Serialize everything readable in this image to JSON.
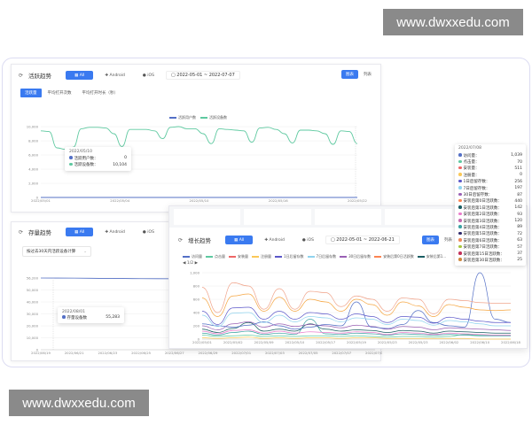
{
  "watermark": {
    "top": "www.dwxxedu.com",
    "bottom": "www.dwxxedu.com"
  },
  "filters": {
    "all": "All",
    "android": "Android",
    "ios": "iOS",
    "chart": "图表",
    "list": "列表"
  },
  "active": {
    "title": "活跃趋势",
    "date_range": "2022-05-01  ~  2022-07-07",
    "tabs": [
      "活跃量",
      "平均打开次数",
      "平均打开时长（秒）"
    ],
    "legend": [
      {
        "name": "活跃用户数",
        "color": "#5470c6"
      },
      {
        "name": "活跃设备数",
        "color": "#5ec9a0"
      }
    ],
    "y_ticks": [
      "10,000",
      "8,000",
      "6,000",
      "4,000",
      "2,000",
      "0"
    ],
    "x_ticks": [
      "2022/05/01",
      "2022/05/04",
      "2022/05/10",
      "2022/05/16",
      "2022/05/22"
    ],
    "ylim": [
      0,
      10000
    ],
    "series_devices": [
      9400,
      9300,
      7000,
      6800,
      7100,
      9700,
      9900,
      9900,
      9800,
      9000,
      7200,
      9600,
      9600,
      9600,
      9400,
      8300,
      9900,
      10000,
      9700,
      9700,
      9000,
      7600,
      9700,
      9600,
      9500,
      9400,
      7800,
      9800,
      9900,
      9600,
      9000,
      7700,
      9500,
      9500,
      9400,
      9000,
      7500,
      9400,
      9300,
      7600
    ],
    "series_users": [
      0,
      0,
      0,
      0,
      0,
      0,
      0,
      0,
      0,
      0,
      0,
      0,
      0,
      0,
      0,
      0,
      0,
      0,
      0,
      0,
      0,
      0,
      0,
      0,
      0,
      0,
      0,
      0,
      0,
      0,
      0,
      0,
      0,
      0,
      0,
      0,
      0,
      0,
      0,
      0
    ],
    "tooltip": {
      "date": "2022/05/10",
      "rows": [
        {
          "label": "活跃用户数：",
          "value": "0",
          "color": "#5470c6"
        },
        {
          "label": "活跃设备数：",
          "value": "10,104",
          "color": "#5ec9a0"
        }
      ]
    }
  },
  "growth": {
    "title": "增长趋势",
    "date_range": "2022-05-01  ~  2022-06-21",
    "legend": [
      "访问量",
      "点击量",
      "安装量",
      "注册量",
      "1日后留存数",
      "7日后留存数",
      "30日后留存数",
      "安装后第0日活跃数",
      "安装后第1..."
    ],
    "legend_page": "1/2",
    "y_ticks": [
      "1,000",
      "800",
      "600",
      "400",
      "200",
      "0"
    ],
    "ylim": [
      0,
      1000
    ],
    "x_ticks": [
      "2022/05/01",
      "2022/05/02",
      "2022/05/09",
      "2022/05/10",
      "2022/05/17",
      "2022/05/19",
      "2022/05/23",
      "2022/05/23",
      "2022/06/02",
      "2022/06/10",
      "2022/06/18"
    ],
    "series": [
      {
        "name": "安装量",
        "color": "#f0a58c",
        "values": [
          780,
          400,
          850,
          800,
          450,
          760,
          450,
          720,
          700,
          490,
          650,
          600,
          420,
          620,
          600,
          380,
          600,
          580,
          550,
          540,
          540
        ]
      },
      {
        "name": "安装后第0日活跃数",
        "color": "#f5a540",
        "values": [
          620,
          340,
          650,
          680,
          420,
          630,
          420,
          600,
          560,
          420,
          600,
          520,
          360,
          560,
          500,
          340,
          520,
          480,
          440,
          430,
          440
        ]
      },
      {
        "name": "1日后留存数",
        "color": "#5b57c9",
        "values": [
          420,
          220,
          470,
          480,
          300,
          420,
          300,
          400,
          380,
          300,
          380,
          340,
          250,
          340,
          330,
          240,
          330,
          300,
          270,
          250,
          250
        ]
      },
      {
        "name": "7日后留存数",
        "color": "#8fd3ee",
        "values": [
          360,
          190,
          390,
          400,
          250,
          360,
          260,
          340,
          320,
          260,
          320,
          300,
          220,
          300,
          280,
          210,
          280,
          260,
          230,
          200,
          200
        ]
      },
      {
        "name": "访问量",
        "color": "#5470c6",
        "values": [
          230,
          200,
          180,
          210,
          260,
          200,
          150,
          180,
          220,
          200,
          560,
          180,
          160,
          220,
          430,
          250,
          200,
          180,
          1000,
          300,
          250
        ]
      },
      {
        "name": "30日后留存数",
        "color": "#9a60b4",
        "values": [
          200,
          140,
          230,
          260,
          180,
          230,
          190,
          220,
          200,
          170,
          210,
          190,
          150,
          190,
          180,
          140,
          170,
          160,
          150,
          140,
          130
        ]
      },
      {
        "name": "安装后第1日活跃数",
        "color": "#1a5e63",
        "values": [
          150,
          100,
          160,
          250,
          120,
          150,
          120,
          230,
          150,
          120,
          140,
          130,
          100,
          130,
          120,
          90,
          120,
          110,
          100,
          90,
          90
        ]
      },
      {
        "name": "安装后第2日活跃数",
        "color": "#ea7ccc",
        "values": [
          120,
          80,
          130,
          140,
          90,
          120,
          90,
          110,
          100,
          90,
          110,
          100,
          70,
          100,
          90,
          70,
          90,
          80,
          70,
          60,
          60
        ]
      },
      {
        "name": "安装后第4日活跃数",
        "color": "#3ba2a2",
        "values": [
          90,
          60,
          100,
          120,
          70,
          90,
          70,
          300,
          80,
          70,
          90,
          80,
          60,
          80,
          70,
          60,
          70,
          60,
          50,
          50,
          50
        ]
      },
      {
        "name": "点击量",
        "color": "#5ec9a0",
        "values": [
          60,
          40,
          50,
          60,
          40,
          50,
          40,
          50,
          50,
          40,
          50,
          40,
          30,
          40,
          40,
          30,
          40,
          70,
          60,
          60,
          60
        ]
      },
      {
        "name": "注册量",
        "color": "#fac858",
        "values": [
          20,
          10,
          20,
          30,
          10,
          20,
          10,
          20,
          20,
          10,
          20,
          20,
          10,
          10,
          10,
          10,
          10,
          10,
          0,
          0,
          0
        ]
      }
    ],
    "tooltip": {
      "date": "2022/07/08",
      "rows": [
        {
          "label": "访问量：",
          "value": "1,039",
          "color": "#5470c6"
        },
        {
          "label": "点击量：",
          "value": "70",
          "color": "#5ec9a0"
        },
        {
          "label": "安装量：",
          "value": "511",
          "color": "#ee6666"
        },
        {
          "label": "注册量：",
          "value": "0",
          "color": "#fac858"
        },
        {
          "label": "1日后留存数：",
          "value": "256",
          "color": "#5b57c9"
        },
        {
          "label": "7日后留存数：",
          "value": "197",
          "color": "#8fd3ee"
        },
        {
          "label": "30日后留存数：",
          "value": "87",
          "color": "#9a60b4"
        },
        {
          "label": "安装后第0日活跃数：",
          "value": "440",
          "color": "#fc8452"
        },
        {
          "label": "安装后第1日活跃数：",
          "value": "142",
          "color": "#1a5e63"
        },
        {
          "label": "安装后第2日活跃数：",
          "value": "93",
          "color": "#ea7ccc"
        },
        {
          "label": "安装后第3日活跃数：",
          "value": "120",
          "color": "#c56bb0"
        },
        {
          "label": "安装后第4日活跃数：",
          "value": "89",
          "color": "#3ba2a2"
        },
        {
          "label": "安装后第5日活跃数：",
          "value": "72",
          "color": "#2f2a6b"
        },
        {
          "label": "安装后第6日活跃数：",
          "value": "63",
          "color": "#f08a5d"
        },
        {
          "label": "安装后第7日活跃数：",
          "value": "57",
          "color": "#a5c63a"
        },
        {
          "label": "安装后第15日活跃数：",
          "value": "37",
          "color": "#c2305a"
        },
        {
          "label": "安装后第30日活跃数：",
          "value": "25",
          "color": "#d08a40"
        }
      ]
    }
  },
  "stock": {
    "title": "存量趋势",
    "select": "按过去30天内活跃设备计算",
    "y_ticks": [
      "56,200",
      "50,000",
      "40,000",
      "30,000",
      "20,000",
      "10,000",
      "0"
    ],
    "x_ticks": [
      "2022/06/19",
      "2022/06/21",
      "2022/06/23",
      "2022/06/25",
      "2022/06/27",
      "2022/06/29",
      "2022/07/01",
      "2022/07/03",
      "2022/07/05",
      "2022/07/07",
      "2022/07/09"
    ],
    "ylim": [
      0,
      56200
    ],
    "series": [
      56200,
      56100,
      55900,
      55700,
      55600,
      55500,
      55400,
      55300,
      55300,
      55283,
      55280
    ],
    "tooltip": {
      "date": "2022/08/01",
      "label": "存量设备数",
      "value": "55,283",
      "color": "#5470c6"
    }
  }
}
